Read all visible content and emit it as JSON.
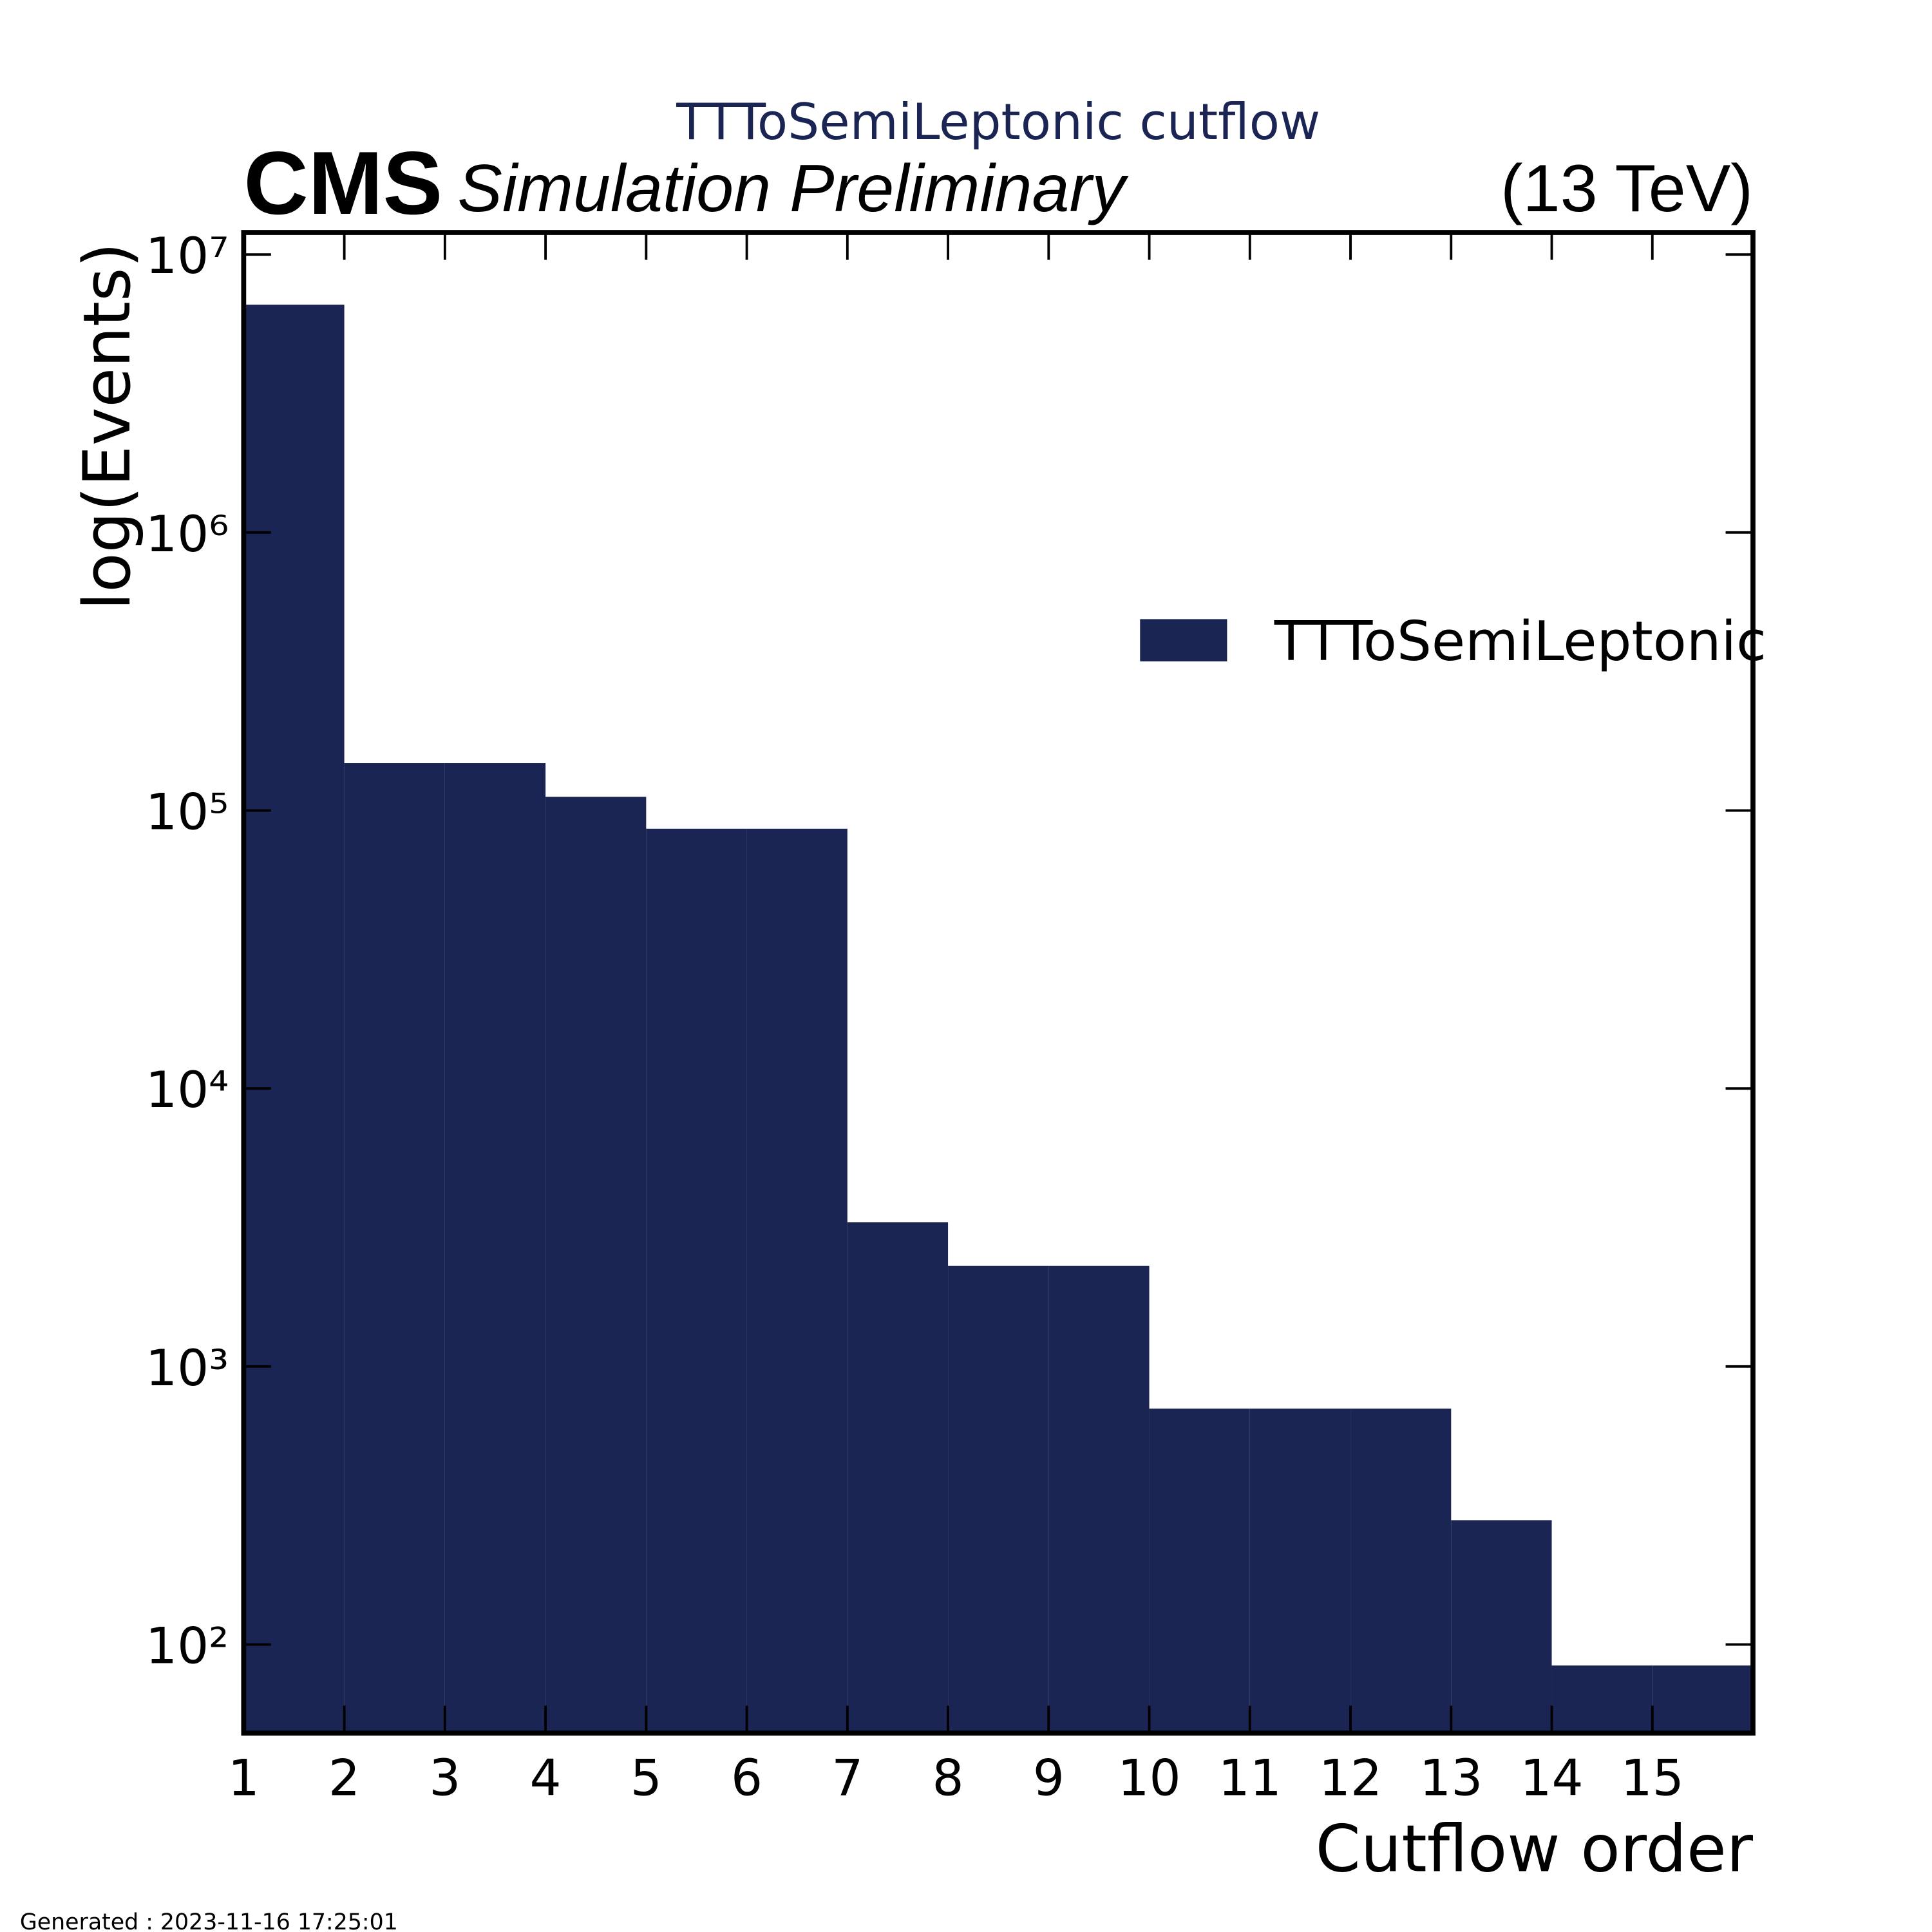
{
  "chart_data": {
    "type": "histogram",
    "title": "TTToSemiLeptonic cutflow",
    "experiment": "CMS",
    "status": "Simulation Preliminary",
    "energy": "(13 TeV)",
    "xlabel": "Cutflow order",
    "ylabel": "log(Events)",
    "footer": "Generated : 2023-11-16 17:25:01",
    "bins": [
      1,
      2,
      3,
      4,
      5,
      6,
      7,
      8,
      9,
      10,
      11,
      12,
      13,
      14,
      15,
      16
    ],
    "series": [
      {
        "name": "TTToSemiLeptonic",
        "color": "#1b2554",
        "values": [
          6600000,
          148000,
          148000,
          112000,
          86000,
          86000,
          3300,
          2300,
          2300,
          705,
          705,
          705,
          280,
          84,
          84
        ]
      }
    ],
    "xlim": [
      1,
      16
    ],
    "xticks": [
      1,
      2,
      3,
      4,
      5,
      6,
      7,
      8,
      9,
      10,
      11,
      12,
      13,
      14,
      15
    ],
    "ylim": [
      48,
      12000000
    ],
    "yticks": [
      {
        "value": 100,
        "label": "10²"
      },
      {
        "value": 1000,
        "label": "10³"
      },
      {
        "value": 10000,
        "label": "10⁴"
      },
      {
        "value": 100000,
        "label": "10⁵"
      },
      {
        "value": 1000000,
        "label": "10⁶"
      },
      {
        "value": 10000000,
        "label": "10⁷"
      }
    ],
    "log_y": true,
    "legend": "upper right"
  }
}
